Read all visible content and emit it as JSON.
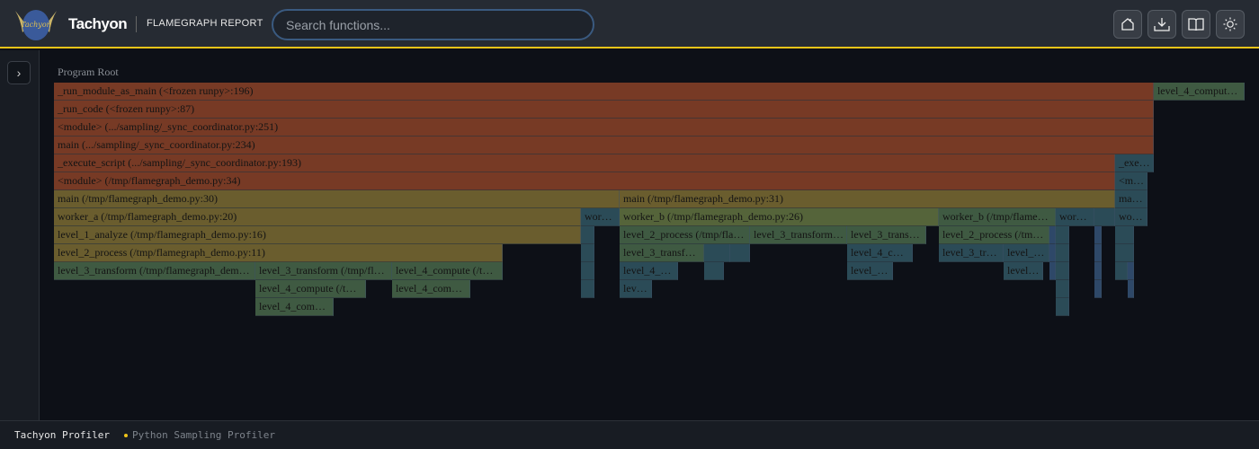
{
  "header": {
    "brand": "Tachyon",
    "subtitle": "FLAMEGRAPH REPORT",
    "search_placeholder": "Search functions...",
    "buttons": [
      "home-icon",
      "download-icon",
      "book-icon",
      "sun-icon"
    ]
  },
  "logo_text": "Tachyon",
  "flamegraph": {
    "root_label": "Program Root",
    "colors": {
      "o": "#773a25",
      "y": "#6a5d2e",
      "g": "#55643a",
      "dg": "#3f5a42",
      "t": "#2b4b57",
      "b": "#2e4868"
    },
    "frames": [
      {
        "d": 0,
        "s": 0,
        "e": 92.37,
        "c": "o",
        "label": "_run_module_as_main (<frozen runpy>:196)"
      },
      {
        "d": 0,
        "s": 92.37,
        "e": 100,
        "c": "dg",
        "label": "level_4_comput…"
      },
      {
        "d": 1,
        "s": 0,
        "e": 92.37,
        "c": "o",
        "label": "_run_code (<frozen runpy>:87)"
      },
      {
        "d": 2,
        "s": 0,
        "e": 92.37,
        "c": "o",
        "label": "<module> (.../sampling/_sync_coordinator.py:251)"
      },
      {
        "d": 3,
        "s": 0,
        "e": 92.37,
        "c": "o",
        "label": "main (.../sampling/_sync_coordinator.py:234)"
      },
      {
        "d": 4,
        "s": 0,
        "e": 89.12,
        "c": "o",
        "label": "_execute_script (.../sampling/_sync_coordinator.py:193)"
      },
      {
        "d": 4,
        "s": 89.12,
        "e": 92.37,
        "c": "t",
        "label": "_exe…"
      },
      {
        "d": 5,
        "s": 0,
        "e": 89.12,
        "c": "o",
        "label": "<module> (/tmp/flamegraph_demo.py:34)"
      },
      {
        "d": 5,
        "s": 89.12,
        "e": 91.84,
        "c": "t",
        "label": "<m…"
      },
      {
        "d": 6,
        "s": 0,
        "e": 47.51,
        "c": "y",
        "label": "main (/tmp/flamegraph_demo.py:30)"
      },
      {
        "d": 6,
        "s": 47.51,
        "e": 89.12,
        "c": "y",
        "label": "main (/tmp/flamegraph_demo.py:31)"
      },
      {
        "d": 6,
        "s": 89.12,
        "e": 91.84,
        "c": "t",
        "label": "ma…"
      },
      {
        "d": 7,
        "s": 0,
        "e": 44.26,
        "c": "y",
        "label": "worker_a (/tmp/flamegraph_demo.py:20)"
      },
      {
        "d": 7,
        "s": 44.26,
        "e": 47.51,
        "c": "t",
        "label": "wor…"
      },
      {
        "d": 7,
        "s": 47.51,
        "e": 74.32,
        "c": "g",
        "label": "worker_b (/tmp/flamegraph_demo.py:26)"
      },
      {
        "d": 7,
        "s": 74.32,
        "e": 84.14,
        "c": "dg",
        "label": "worker_b (/tmp/flame…"
      },
      {
        "d": 7,
        "s": 84.14,
        "e": 87.39,
        "c": "t",
        "label": "wor…"
      },
      {
        "d": 7,
        "s": 87.39,
        "e": 89.12,
        "c": "t",
        "label": ""
      },
      {
        "d": 7,
        "s": 89.12,
        "e": 91.84,
        "c": "t",
        "label": "wo…"
      },
      {
        "d": 8,
        "s": 0,
        "e": 44.26,
        "c": "y",
        "label": "level_1_analyze (/tmp/flamegraph_demo.py:16)"
      },
      {
        "d": 8,
        "s": 44.26,
        "e": 45.39,
        "c": "t",
        "label": ""
      },
      {
        "d": 8,
        "s": 47.51,
        "e": 58.46,
        "c": "dg",
        "label": "level_2_process (/tmp/fla…"
      },
      {
        "d": 8,
        "s": 58.46,
        "e": 66.62,
        "c": "dg",
        "label": "level_3_transform…"
      },
      {
        "d": 8,
        "s": 66.62,
        "e": 73.26,
        "c": "dg",
        "label": "level_3_trans…"
      },
      {
        "d": 8,
        "s": 74.32,
        "e": 83.61,
        "c": "dg",
        "label": "level_2_process (/tm…"
      },
      {
        "d": 8,
        "s": 83.61,
        "e": 84.14,
        "c": "b",
        "label": ""
      },
      {
        "d": 8,
        "s": 84.14,
        "e": 85.27,
        "c": "t",
        "label": ""
      },
      {
        "d": 8,
        "s": 87.39,
        "e": 87.99,
        "c": "b",
        "label": ""
      },
      {
        "d": 8,
        "s": 89.12,
        "e": 90.71,
        "c": "t",
        "label": ""
      },
      {
        "d": 9,
        "s": 0,
        "e": 37.69,
        "c": "y",
        "label": "level_2_process (/tmp/flamegraph_demo.py:11)"
      },
      {
        "d": 9,
        "s": 44.26,
        "e": 45.39,
        "c": "t",
        "label": ""
      },
      {
        "d": 9,
        "s": 47.51,
        "e": 54.61,
        "c": "dg",
        "label": "level_3_transf…"
      },
      {
        "d": 9,
        "s": 54.61,
        "e": 56.8,
        "c": "t",
        "label": ""
      },
      {
        "d": 9,
        "s": 56.8,
        "e": 58.46,
        "c": "t",
        "label": ""
      },
      {
        "d": 9,
        "s": 66.62,
        "e": 72.13,
        "c": "t",
        "label": "level_4_c…"
      },
      {
        "d": 9,
        "s": 74.32,
        "e": 79.76,
        "c": "t",
        "label": "level_3_tr…"
      },
      {
        "d": 9,
        "s": 79.76,
        "e": 83.61,
        "c": "t",
        "label": "level_…"
      },
      {
        "d": 9,
        "s": 83.61,
        "e": 84.14,
        "c": "b",
        "label": ""
      },
      {
        "d": 9,
        "s": 84.14,
        "e": 85.27,
        "c": "t",
        "label": ""
      },
      {
        "d": 9,
        "s": 87.39,
        "e": 87.99,
        "c": "b",
        "label": ""
      },
      {
        "d": 9,
        "s": 89.12,
        "e": 90.71,
        "c": "t",
        "label": ""
      },
      {
        "d": 10,
        "s": 0,
        "e": 16.92,
        "c": "dg",
        "label": "level_3_transform (/tmp/flamegraph_dem…"
      },
      {
        "d": 10,
        "s": 16.92,
        "e": 28.4,
        "c": "dg",
        "label": "level_3_transform (/tmp/fl…"
      },
      {
        "d": 10,
        "s": 28.4,
        "e": 37.69,
        "c": "dg",
        "label": "level_4_compute (/t…"
      },
      {
        "d": 10,
        "s": 44.26,
        "e": 45.39,
        "c": "t",
        "label": ""
      },
      {
        "d": 10,
        "s": 47.51,
        "e": 52.42,
        "c": "t",
        "label": "level_4_…"
      },
      {
        "d": 10,
        "s": 54.61,
        "e": 56.27,
        "c": "t",
        "label": ""
      },
      {
        "d": 10,
        "s": 66.62,
        "e": 70.47,
        "c": "t",
        "label": "level_…"
      },
      {
        "d": 10,
        "s": 79.76,
        "e": 83.08,
        "c": "t",
        "label": "level…"
      },
      {
        "d": 10,
        "s": 83.61,
        "e": 84.14,
        "c": "b",
        "label": ""
      },
      {
        "d": 10,
        "s": 84.14,
        "e": 85.27,
        "c": "t",
        "label": ""
      },
      {
        "d": 10,
        "s": 87.39,
        "e": 87.99,
        "c": "b",
        "label": ""
      },
      {
        "d": 10,
        "s": 89.12,
        "e": 90.18,
        "c": "t",
        "label": ""
      },
      {
        "d": 10,
        "s": 90.18,
        "e": 90.71,
        "c": "b",
        "label": ""
      },
      {
        "d": 11,
        "s": 16.92,
        "e": 26.21,
        "c": "dg",
        "label": "level_4_compute (/t…"
      },
      {
        "d": 11,
        "s": 28.4,
        "e": 34.97,
        "c": "dg",
        "label": "level_4_com…"
      },
      {
        "d": 11,
        "s": 44.26,
        "e": 45.39,
        "c": "t",
        "label": ""
      },
      {
        "d": 11,
        "s": 47.51,
        "e": 50.23,
        "c": "t",
        "label": "lev…"
      },
      {
        "d": 11,
        "s": 84.14,
        "e": 85.27,
        "c": "t",
        "label": ""
      },
      {
        "d": 11,
        "s": 87.39,
        "e": 87.99,
        "c": "b",
        "label": ""
      },
      {
        "d": 11,
        "s": 90.18,
        "e": 90.71,
        "c": "b",
        "label": ""
      },
      {
        "d": 12,
        "s": 16.92,
        "e": 23.49,
        "c": "dg",
        "label": "level_4_com…"
      },
      {
        "d": 12,
        "s": 84.14,
        "e": 85.27,
        "c": "t",
        "label": ""
      }
    ]
  },
  "footer": {
    "left": "Tachyon Profiler",
    "right": "Python Sampling Profiler"
  }
}
